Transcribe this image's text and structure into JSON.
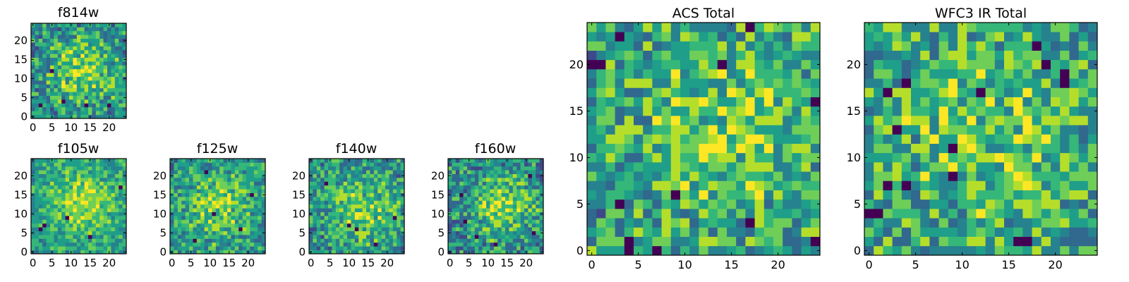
{
  "colormap": "viridis",
  "colors": {
    "viridis": [
      "#440154",
      "#482878",
      "#3e4989",
      "#31688e",
      "#26828e",
      "#1f9e89",
      "#35b779",
      "#6ece58",
      "#b5de2b",
      "#fde725"
    ],
    "frame": "#000000",
    "background": "#ffffff"
  },
  "chart_data": [
    {
      "id": "f814w",
      "type": "heatmap",
      "title": "f814w",
      "grid_size": 25,
      "xlim": [
        0,
        25
      ],
      "ylim": [
        0,
        25
      ],
      "xticks": [
        0,
        5,
        10,
        15,
        20
      ],
      "yticks": [
        0,
        5,
        10,
        15,
        20
      ],
      "pattern": {
        "seed": 11,
        "cx": 13,
        "cy": 12,
        "sigma": 6.5,
        "amp": 0.34,
        "noise": 0.28,
        "base": 0.48,
        "lows": [
          [
            2,
            3
          ],
          [
            8,
            4
          ],
          [
            14,
            3
          ],
          [
            5,
            12
          ],
          [
            20,
            3
          ]
        ]
      }
    },
    {
      "id": "f105w",
      "type": "heatmap",
      "title": "f105w",
      "grid_size": 25,
      "xlim": [
        0,
        25
      ],
      "ylim": [
        0,
        25
      ],
      "xticks": [
        0,
        5,
        10,
        15,
        20
      ],
      "yticks": [
        0,
        5,
        10,
        15,
        20
      ],
      "pattern": {
        "seed": 23,
        "cx": 13,
        "cy": 13,
        "sigma": 6,
        "amp": 0.32,
        "noise": 0.2,
        "base": 0.55,
        "lows": [
          [
            2,
            6
          ],
          [
            3,
            7
          ],
          [
            9,
            9
          ],
          [
            15,
            4
          ],
          [
            23,
            17
          ]
        ]
      }
    },
    {
      "id": "f125w",
      "type": "heatmap",
      "title": "f125w",
      "grid_size": 25,
      "xlim": [
        0,
        25
      ],
      "ylim": [
        0,
        25
      ],
      "xticks": [
        0,
        5,
        10,
        15,
        20
      ],
      "yticks": [
        0,
        5,
        10,
        15,
        20
      ],
      "pattern": {
        "seed": 37,
        "cx": 12,
        "cy": 12,
        "sigma": 6.5,
        "amp": 0.3,
        "noise": 0.25,
        "base": 0.5,
        "lows": [
          [
            6,
            3
          ],
          [
            9,
            21
          ],
          [
            18,
            6
          ],
          [
            21,
            15
          ],
          [
            11,
            10
          ]
        ]
      }
    },
    {
      "id": "f140w",
      "type": "heatmap",
      "title": "f140w",
      "grid_size": 25,
      "xlim": [
        0,
        25
      ],
      "ylim": [
        0,
        25
      ],
      "xticks": [
        0,
        5,
        10,
        15,
        20
      ],
      "yticks": [
        0,
        5,
        10,
        15,
        20
      ],
      "pattern": {
        "seed": 41,
        "cx": 14,
        "cy": 11,
        "sigma": 6,
        "amp": 0.3,
        "noise": 0.27,
        "base": 0.5,
        "lows": [
          [
            10,
            7
          ],
          [
            12,
            6
          ],
          [
            17,
            2
          ],
          [
            4,
            18
          ],
          [
            22,
            9
          ]
        ]
      }
    },
    {
      "id": "f160w",
      "type": "heatmap",
      "title": "f160w",
      "grid_size": 25,
      "xlim": [
        0,
        25
      ],
      "ylim": [
        0,
        25
      ],
      "xticks": [
        0,
        5,
        10,
        15,
        20
      ],
      "yticks": [
        0,
        5,
        10,
        15,
        20
      ],
      "pattern": {
        "seed": 53,
        "cx": 14,
        "cy": 12,
        "sigma": 6,
        "amp": 0.36,
        "noise": 0.28,
        "base": 0.46,
        "lows": [
          [
            3,
            15
          ],
          [
            4,
            8
          ],
          [
            7,
            4
          ],
          [
            21,
            20
          ],
          [
            22,
            5
          ],
          [
            12,
            2
          ]
        ]
      }
    },
    {
      "id": "acs-total",
      "type": "heatmap",
      "title": "ACS Total",
      "grid_size": 25,
      "xlim": [
        0,
        25
      ],
      "ylim": [
        0,
        25
      ],
      "xticks": [
        0,
        5,
        10,
        15,
        20
      ],
      "yticks": [
        0,
        5,
        10,
        15,
        20
      ],
      "pattern": {
        "seed": 67,
        "cx": 15,
        "cy": 13,
        "sigma": 7,
        "amp": 0.22,
        "noise": 0.3,
        "base": 0.55,
        "lows": [
          [
            0,
            20
          ],
          [
            1,
            20
          ],
          [
            3,
            23
          ],
          [
            17,
            24
          ],
          [
            4,
            0
          ],
          [
            4,
            1
          ],
          [
            9,
            6
          ],
          [
            3,
            5
          ],
          [
            24,
            16
          ],
          [
            24,
            1
          ],
          [
            17,
            3
          ],
          [
            14,
            20
          ],
          [
            7,
            0
          ]
        ]
      }
    },
    {
      "id": "wfc3-ir-total",
      "type": "heatmap",
      "title": "WFC3 IR Total",
      "grid_size": 25,
      "xlim": [
        0,
        25
      ],
      "ylim": [
        0,
        25
      ],
      "xticks": [
        0,
        5,
        10,
        15,
        20
      ],
      "yticks": [
        0,
        5,
        10,
        15,
        20
      ],
      "pattern": {
        "seed": 79,
        "cx": 12,
        "cy": 12,
        "sigma": 7,
        "amp": 0.22,
        "noise": 0.3,
        "base": 0.55,
        "lows": [
          [
            0,
            4
          ],
          [
            1,
            4
          ],
          [
            2,
            17
          ],
          [
            4,
            18
          ],
          [
            3,
            13
          ],
          [
            19,
            20
          ],
          [
            21,
            19
          ],
          [
            21,
            18
          ],
          [
            18,
            22
          ],
          [
            12,
            17
          ],
          [
            4,
            7
          ],
          [
            9,
            8
          ],
          [
            2,
            7
          ],
          [
            16,
            1
          ],
          [
            17,
            1
          ],
          [
            9,
            11
          ]
        ]
      }
    }
  ]
}
